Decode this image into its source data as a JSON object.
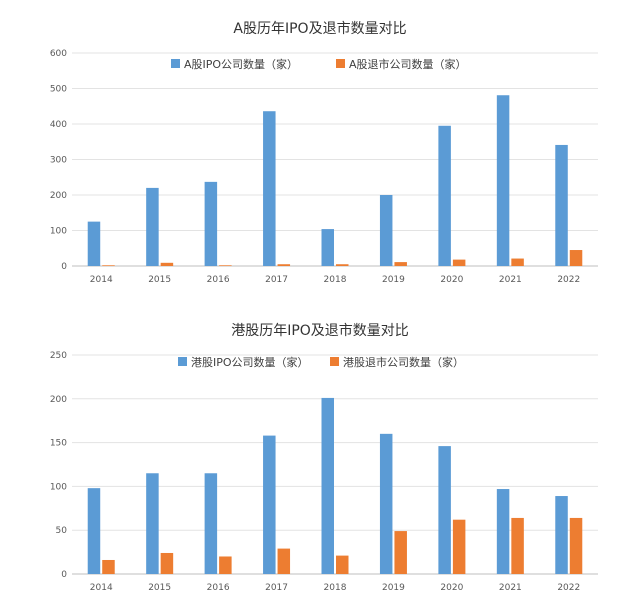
{
  "colors": {
    "ipo": "#5B9BD5",
    "delist": "#ED7D31"
  },
  "chart_data": [
    {
      "type": "bar",
      "title": "A股历年IPO及退市数量对比",
      "categories": [
        "2014",
        "2015",
        "2016",
        "2017",
        "2018",
        "2019",
        "2020",
        "2021",
        "2022"
      ],
      "series": [
        {
          "name": "A股IPO公司数量（家）",
          "values": [
            125,
            220,
            237,
            436,
            104,
            200,
            395,
            481,
            341
          ]
        },
        {
          "name": "A股退市公司数量（家）",
          "values": [
            2,
            9,
            2,
            5,
            5,
            11,
            18,
            21,
            45
          ]
        }
      ],
      "ylim": [
        0,
        600
      ],
      "yticks": [
        0,
        100,
        200,
        300,
        400,
        500,
        600
      ],
      "grid": true,
      "legend": "top"
    },
    {
      "type": "bar",
      "title": "港股历年IPO及退市数量对比",
      "categories": [
        "2014",
        "2015",
        "2016",
        "2017",
        "2018",
        "2019",
        "2020",
        "2021",
        "2022"
      ],
      "series": [
        {
          "name": "港股IPO公司数量（家）",
          "values": [
            98,
            115,
            115,
            158,
            201,
            160,
            146,
            97,
            89
          ]
        },
        {
          "name": "港股退市公司数量（家）",
          "values": [
            16,
            24,
            20,
            29,
            21,
            49,
            62,
            64,
            64
          ]
        }
      ],
      "ylim": [
        0,
        250
      ],
      "yticks": [
        0,
        50,
        100,
        150,
        200,
        250
      ],
      "grid": true,
      "legend": "top"
    }
  ]
}
